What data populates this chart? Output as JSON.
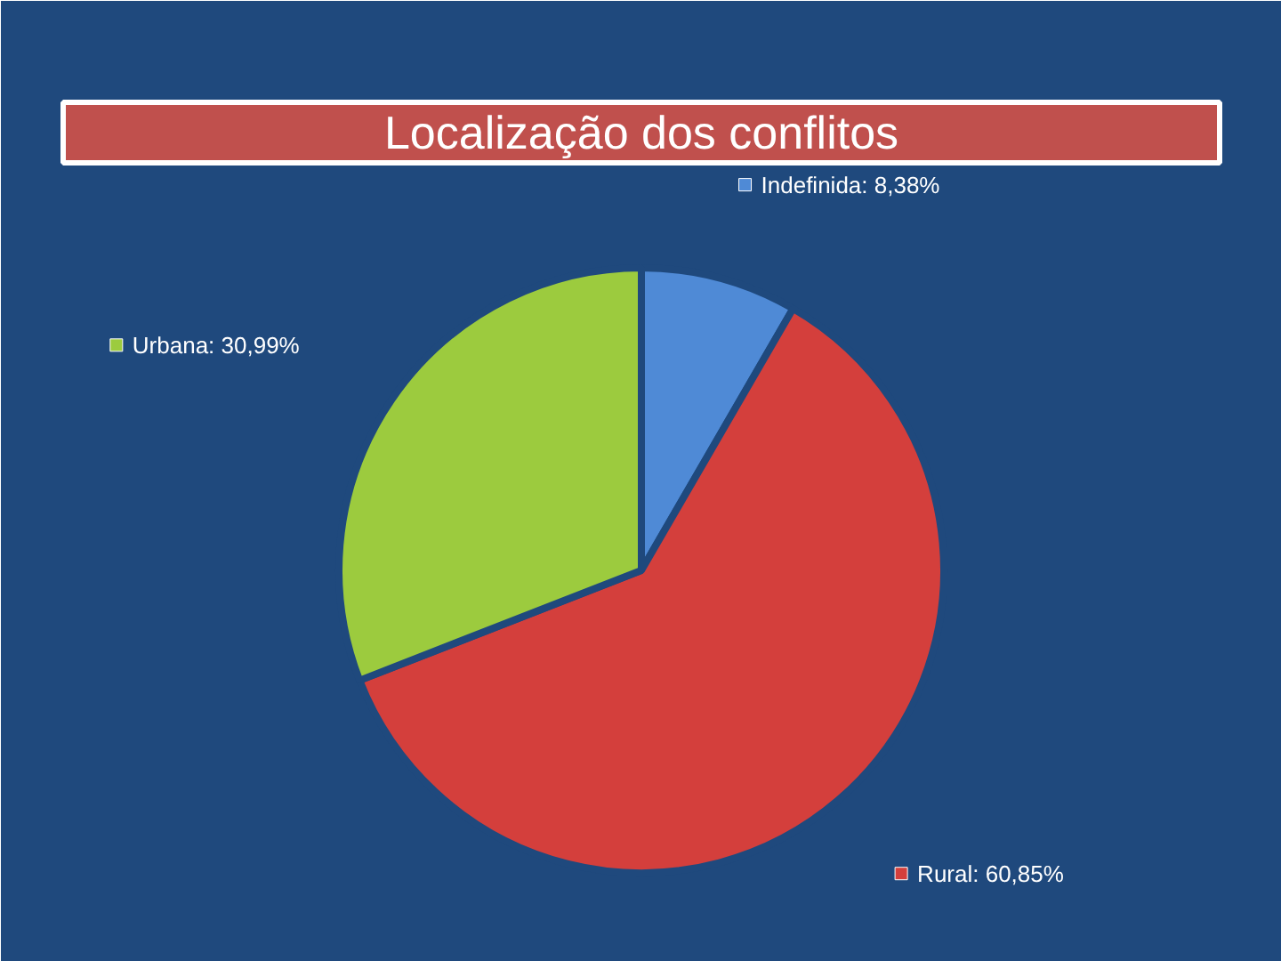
{
  "chart_data": {
    "type": "pie",
    "title": "Localização dos conflitos",
    "categories": [
      "Indefinida",
      "Rural",
      "Urbana"
    ],
    "values": [
      8.38,
      60.85,
      30.99
    ],
    "value_labels": [
      "8,38%",
      "60,85%",
      "30,99%"
    ],
    "colors": [
      "#4f8ad6",
      "#d43f3c",
      "#9ccb3e"
    ],
    "legend": "top left"
  }
}
